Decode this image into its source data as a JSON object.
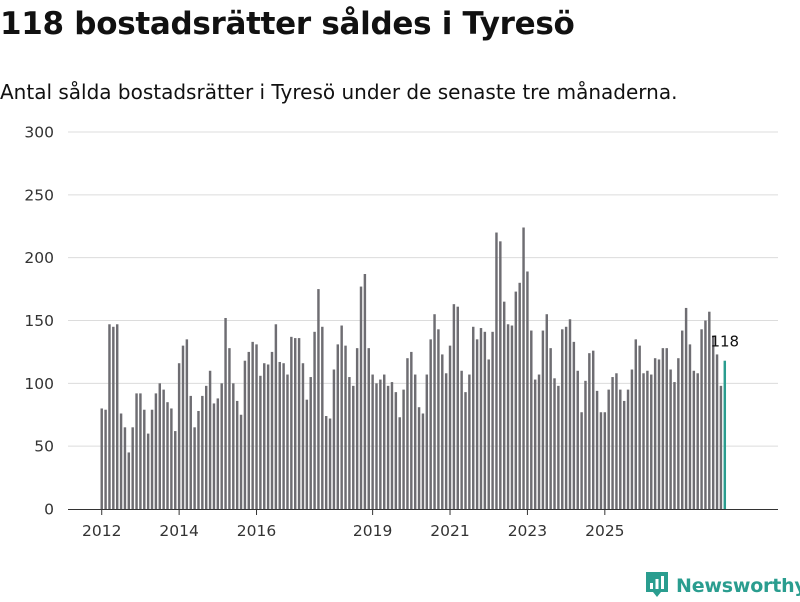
{
  "header": {
    "title": "118 bostadsrätter såldes i Tyresö",
    "subtitle": "Antal sålda bostadsrätter i Tyresö under de senaste tre månaderna."
  },
  "brand": {
    "name": "Newsworthy",
    "icon": "newsworthy-logo-icon",
    "color": "#2a9d8f"
  },
  "colors": {
    "bar": "#6e6d72",
    "highlight": "#2a9d8f",
    "grid": "#dcdcdc",
    "axis": "#333333"
  },
  "chart_data": {
    "type": "bar",
    "title": "118 bostadsrätter såldes i Tyresö",
    "subtitle": "Antal sålda bostadsrätter i Tyresö under de senaste tre månaderna.",
    "xlabel": "",
    "ylabel": "",
    "ylim": [
      0,
      300
    ],
    "yticks": [
      0,
      50,
      100,
      150,
      200,
      250,
      300
    ],
    "xticks": [
      {
        "label": "2012",
        "index": 0
      },
      {
        "label": "2014",
        "index": 20
      },
      {
        "label": "2016",
        "index": 40
      },
      {
        "label": "2019",
        "index": 70
      },
      {
        "label": "2021",
        "index": 90
      },
      {
        "label": "2023",
        "index": 110
      },
      {
        "label": "2025",
        "index": 130
      }
    ],
    "grid": true,
    "highlight_last": true,
    "last_label": "118",
    "values": [
      80,
      79,
      147,
      145,
      147,
      76,
      65,
      45,
      65,
      92,
      92,
      79,
      60,
      79,
      92,
      100,
      95,
      85,
      80,
      62,
      116,
      130,
      135,
      90,
      65,
      78,
      90,
      98,
      110,
      84,
      88,
      100,
      152,
      128,
      100,
      86,
      75,
      118,
      125,
      133,
      131,
      106,
      116,
      115,
      125,
      147,
      117,
      116,
      107,
      137,
      136,
      136,
      116,
      87,
      105,
      141,
      175,
      145,
      74,
      72,
      111,
      131,
      146,
      130,
      105,
      98,
      128,
      177,
      187,
      128,
      107,
      100,
      103,
      107,
      98,
      101,
      93,
      73,
      95,
      120,
      125,
      107,
      81,
      76,
      107,
      135,
      155,
      143,
      123,
      108,
      130,
      163,
      161,
      110,
      93,
      107,
      145,
      135,
      144,
      141,
      119,
      141,
      220,
      213,
      165,
      147,
      146,
      173,
      180,
      224,
      189,
      142,
      103,
      107,
      142,
      155,
      128,
      104,
      98,
      143,
      145,
      151,
      133,
      110,
      77,
      102,
      124,
      126,
      94,
      77,
      77,
      95,
      105,
      108,
      95,
      86,
      95,
      111,
      135,
      130,
      108,
      110,
      107,
      120,
      119,
      128,
      128,
      111,
      101,
      120,
      142,
      160,
      131,
      110,
      108,
      143,
      150,
      157,
      138,
      123,
      98,
      118
    ]
  }
}
